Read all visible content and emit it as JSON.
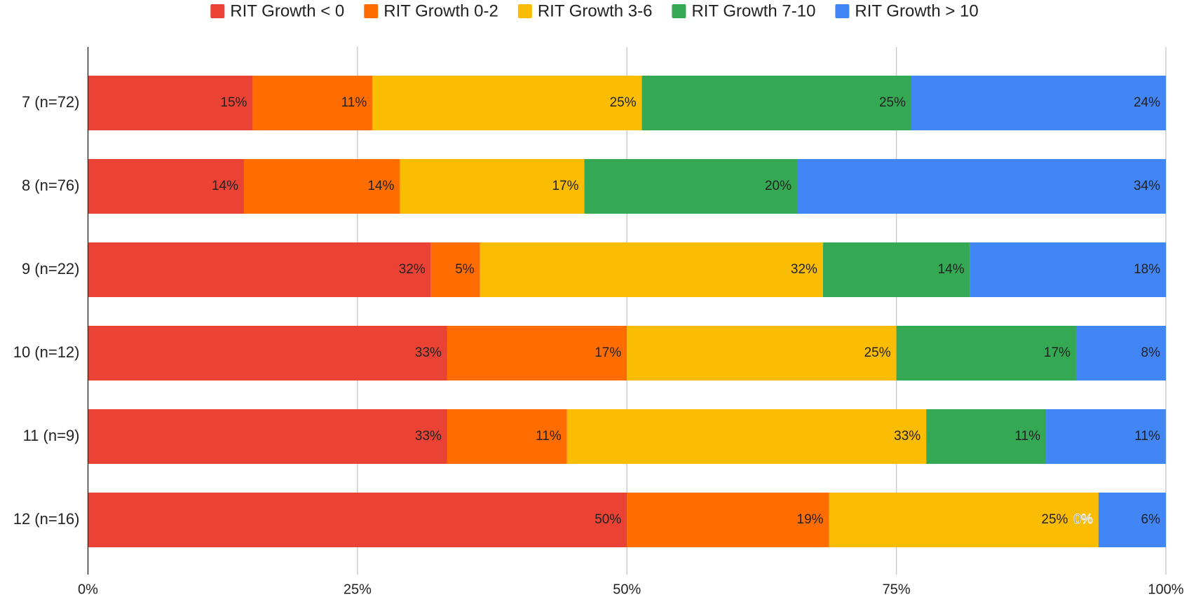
{
  "chart_data": {
    "type": "stacked_bar_horizontal",
    "categories": [
      "7 (n=72)",
      "8 (n=76)",
      "9 (n=22)",
      "10 (n=12)",
      "11 (n=9)",
      "12 (n=16)"
    ],
    "series": [
      {
        "name": "RIT Growth < 0",
        "color": "#ea4335",
        "values": [
          15.28,
          14.47,
          31.82,
          33.33,
          33.33,
          50
        ],
        "value_labels": [
          "15%",
          "14%",
          "32%",
          "33%",
          "33%",
          "50%"
        ]
      },
      {
        "name": "RIT Growth 0-2",
        "color": "#ff6d01",
        "values": [
          11.11,
          14.47,
          4.55,
          16.67,
          11.11,
          18.75
        ],
        "value_labels": [
          "11%",
          "14%",
          "5%",
          "17%",
          "11%",
          "19%"
        ]
      },
      {
        "name": "RIT Growth 3-6",
        "color": "#fbbc04",
        "values": [
          25,
          17.11,
          31.82,
          25,
          33.33,
          25
        ],
        "value_labels": [
          "25%",
          "17%",
          "32%",
          "25%",
          "33%",
          "25%"
        ]
      },
      {
        "name": "RIT Growth 7-10",
        "color": "#34a853",
        "values": [
          25,
          19.74,
          13.64,
          16.67,
          11.11,
          0
        ],
        "value_labels": [
          "25%",
          "20%",
          "14%",
          "17%",
          "11%",
          "0%"
        ]
      },
      {
        "name": "RIT Growth > 10",
        "color": "#4285f4",
        "values": [
          23.61,
          34.21,
          18.18,
          8.33,
          11.11,
          6.25
        ],
        "value_labels": [
          "24%",
          "34%",
          "18%",
          "8%",
          "11%",
          "6%"
        ]
      }
    ],
    "xlim": [
      0,
      100
    ],
    "xticks": [
      {
        "value": 0,
        "label": "0%"
      },
      {
        "value": 25,
        "label": "25%"
      },
      {
        "value": 50,
        "label": "50%"
      },
      {
        "value": 75,
        "label": "75%"
      },
      {
        "value": 100,
        "label": "100%"
      }
    ],
    "grid": true,
    "legend": "top"
  }
}
